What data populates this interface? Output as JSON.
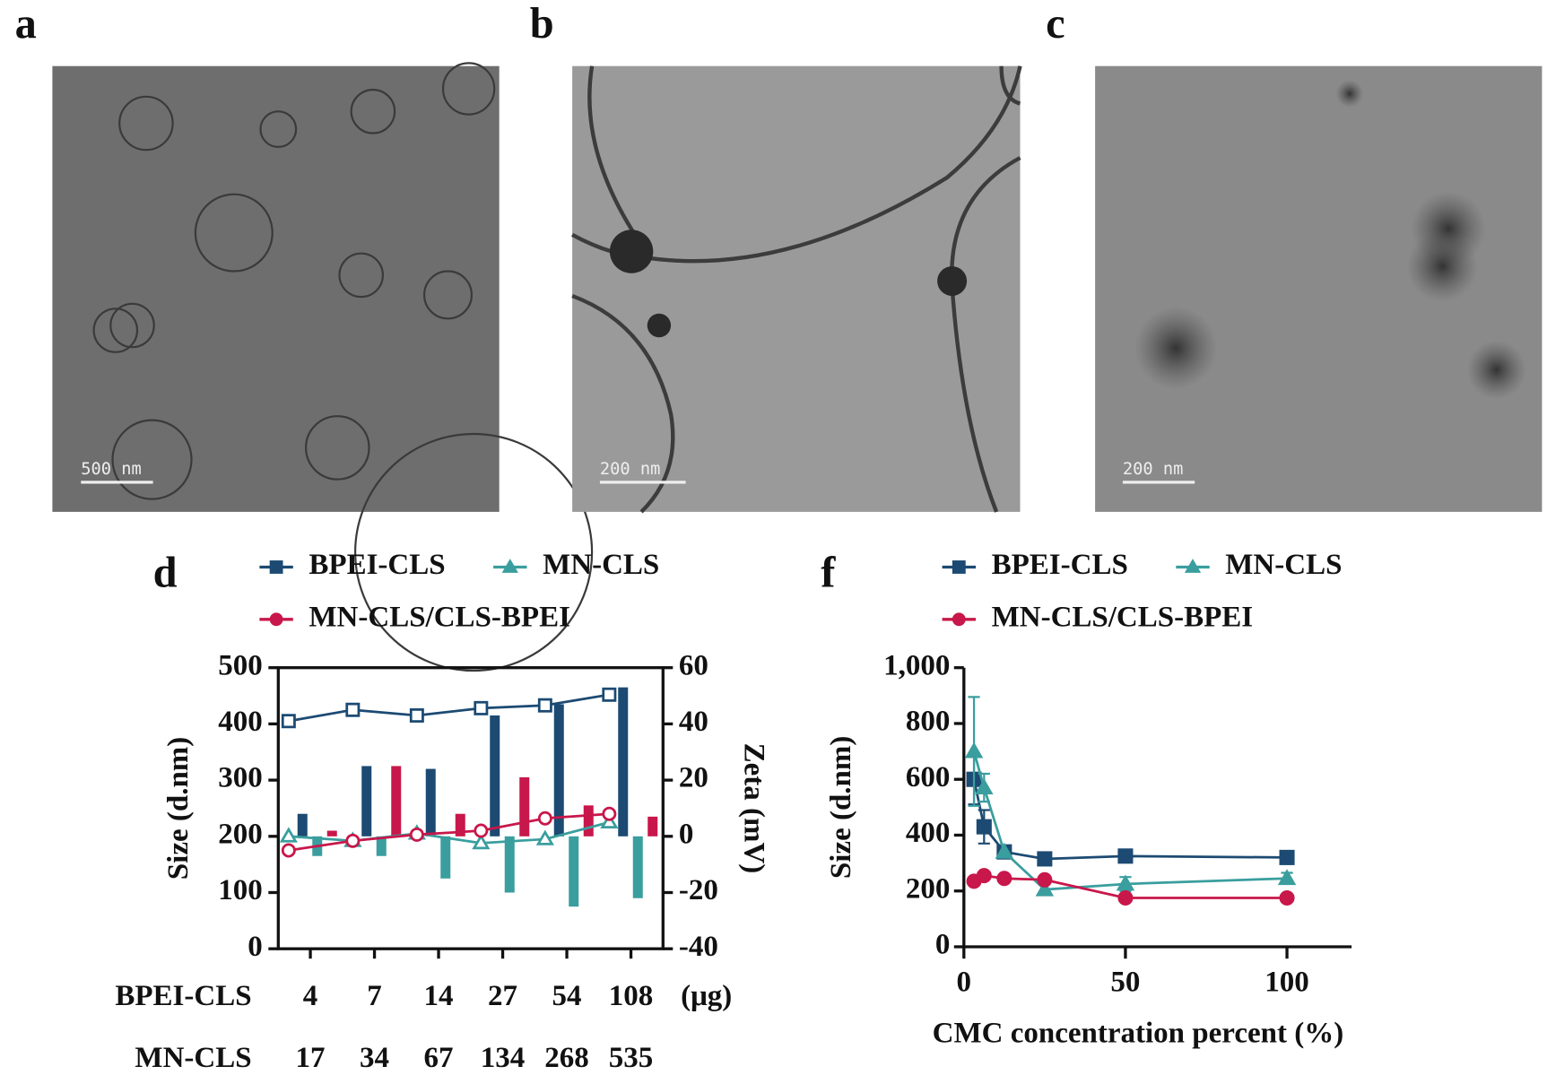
{
  "panels": [
    {
      "label": "a",
      "scale_bar": "500 nm"
    },
    {
      "label": "b",
      "scale_bar": "200 nm"
    },
    {
      "label": "c",
      "scale_bar": "200 nm"
    }
  ],
  "chart_data": [
    {
      "type": "combo",
      "panel_label": "d",
      "y_label": "Size (d.nm)",
      "y2_label": "Zeta (mV)",
      "category_rows": [
        {
          "name": "BPEI-CLS",
          "labels": [
            "4",
            "7",
            "14",
            "27",
            "54",
            "108"
          ]
        },
        {
          "name": "MN-CLS",
          "labels": [
            "17",
            "34",
            "67",
            "134",
            "268",
            "535"
          ]
        }
      ],
      "category_unit": "(μg)",
      "ylim": [
        0,
        500
      ],
      "yticks": [
        0,
        100,
        200,
        300,
        400,
        500
      ],
      "y2lim": [
        -40,
        60
      ],
      "y2ticks": [
        -40,
        -20,
        0,
        20,
        40,
        60
      ],
      "series": [
        {
          "name": "BPEI-CLS",
          "color": "#1c4a72",
          "marker": "square",
          "values": [
            405,
            425,
            415,
            428,
            433,
            452
          ],
          "y2_values": [
            8,
            25,
            24,
            43,
            47,
            53
          ]
        },
        {
          "name": "MN-CLS",
          "color": "#3a9e9e",
          "marker": "triangle",
          "values": [
            200,
            192,
            205,
            188,
            195,
            225
          ],
          "y2_values": [
            -7,
            -7,
            -15,
            -20,
            -25,
            -22
          ]
        },
        {
          "name": "MN-CLS/CLS-BPEI",
          "color": "#c8174a",
          "marker": "circle",
          "values": [
            175,
            192,
            203,
            210,
            232,
            240
          ],
          "y2_values": [
            2,
            25,
            8,
            21,
            11,
            7
          ]
        }
      ]
    },
    {
      "type": "line",
      "panel_label": "f",
      "y_label": "Size (d.nm)",
      "x_label": "CMC concentration percent (%)",
      "x": [
        3.125,
        6.25,
        12.5,
        25,
        50,
        100
      ],
      "xlim": [
        0,
        120
      ],
      "xticks": [
        0,
        50,
        100
      ],
      "ylim": [
        0,
        1000
      ],
      "yticks": [
        0,
        200,
        400,
        600,
        800,
        {
          "value": 1000,
          "label": "1,000"
        }
      ],
      "series": [
        {
          "name": "BPEI-CLS",
          "color": "#1c4a72",
          "marker": "square",
          "values": [
            600,
            430,
            340,
            315,
            325,
            320
          ],
          "errors": [
            90,
            60,
            null,
            null,
            null,
            null
          ]
        },
        {
          "name": "MN-CLS",
          "color": "#3a9e9e",
          "marker": "triangle",
          "values": [
            700,
            570,
            340,
            205,
            225,
            245
          ],
          "errors": [
            195,
            50,
            null,
            null,
            25,
            20
          ]
        },
        {
          "name": "MN-CLS/CLS-BPEI",
          "color": "#c8174a",
          "marker": "circle",
          "values": [
            235,
            255,
            245,
            240,
            175,
            175
          ],
          "errors": [
            null,
            null,
            null,
            null,
            null,
            null
          ]
        }
      ]
    }
  ]
}
